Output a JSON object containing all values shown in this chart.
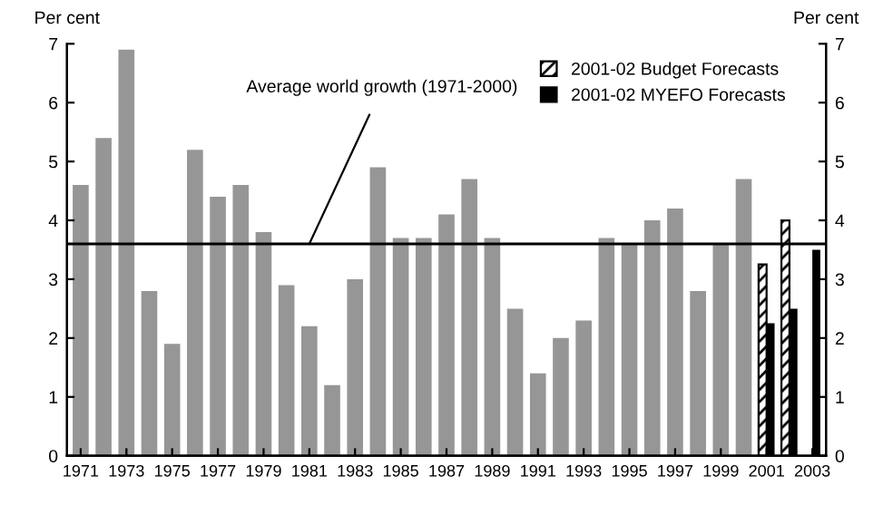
{
  "chart_data": {
    "type": "bar",
    "ylabel": "Per cent",
    "y2label": "Per cent",
    "categories": [
      "1971",
      null,
      "1973",
      null,
      "1975",
      null,
      "1977",
      null,
      "1979",
      null,
      "1981",
      null,
      "1983",
      null,
      "1985",
      null,
      "1987",
      null,
      "1989",
      null,
      "1991",
      null,
      "1993",
      null,
      "1995",
      null,
      "1997",
      null,
      "1999",
      null,
      "2001",
      null,
      "2003"
    ],
    "series": [
      {
        "color": "#969696",
        "values": [
          4.6,
          5.4,
          6.9,
          2.8,
          1.9,
          5.2,
          4.4,
          4.6,
          3.8,
          2.9,
          2.2,
          1.2,
          3.0,
          4.9,
          3.7,
          3.7,
          4.1,
          4.7,
          3.7,
          2.5,
          1.4,
          2.0,
          2.3,
          3.7,
          3.6,
          4.0,
          4.2,
          2.8,
          3.6,
          4.7,
          null,
          null,
          null
        ]
      },
      {
        "name": "2001-02 Budget Forecasts",
        "color": "#000000",
        "values": [
          null,
          null,
          null,
          null,
          null,
          null,
          null,
          null,
          null,
          null,
          null,
          null,
          null,
          null,
          null,
          null,
          null,
          null,
          null,
          null,
          null,
          null,
          null,
          null,
          null,
          null,
          null,
          null,
          null,
          null,
          3.25,
          4.0,
          null
        ]
      },
      {
        "name": "2001-02 MYEFO Forecasts",
        "color": "#000000",
        "values": [
          null,
          null,
          null,
          null,
          null,
          null,
          null,
          null,
          null,
          null,
          null,
          null,
          null,
          null,
          null,
          null,
          null,
          null,
          null,
          null,
          null,
          null,
          null,
          null,
          null,
          null,
          null,
          null,
          null,
          null,
          2.25,
          2.5,
          3.5
        ]
      }
    ],
    "ylim": [
      0,
      7
    ],
    "yticks": [
      0,
      1,
      2,
      3,
      4,
      5,
      6,
      7
    ],
    "y2lim": [
      0,
      7
    ],
    "y2ticks": [
      0,
      1,
      2,
      3,
      4,
      5,
      6,
      7
    ],
    "ref_lines": [
      {
        "axis": "y",
        "value": 3.6,
        "color": "#000000"
      }
    ],
    "annotations": [
      {
        "text": "Average world growth (1971-2000)",
        "x": "1981",
        "y": 3.6
      }
    ],
    "legend": "top right",
    "grid": false
  }
}
